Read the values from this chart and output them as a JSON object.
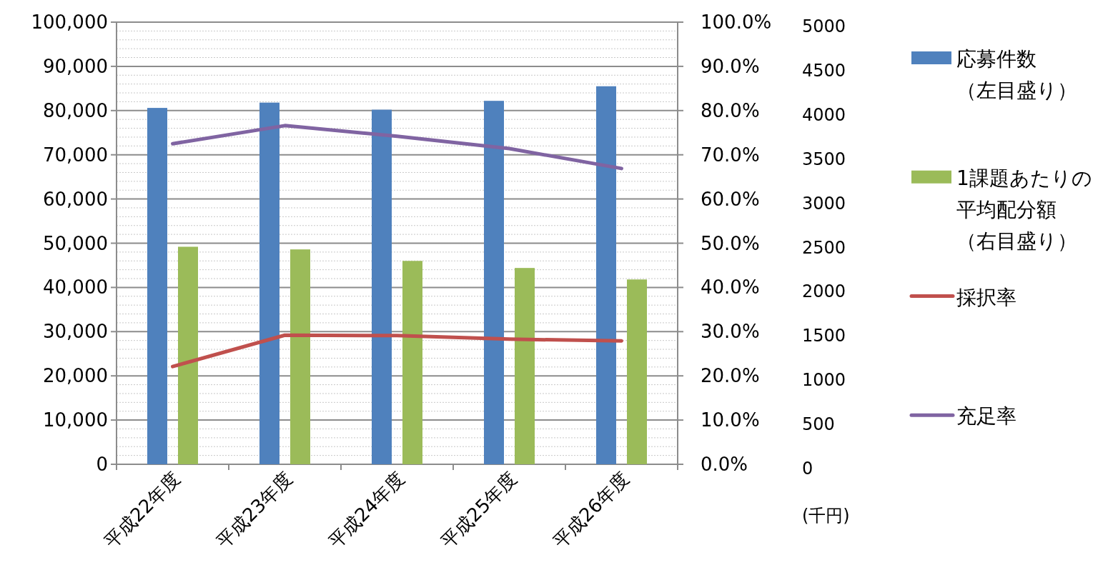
{
  "chart_data": {
    "type": "bar",
    "categories": [
      "平成22年度",
      "平成23年度",
      "平成24年度",
      "平成25年度",
      "平成26年度"
    ],
    "series": [
      {
        "name": "応募件数（左目盛り）",
        "axis": "y",
        "color": "#4f81bd",
        "values": [
          80600,
          81800,
          80200,
          82200,
          85500
        ]
      },
      {
        "name": "1課題あたりの平均配分額（右目盛り）",
        "axis": "y3",
        "color": "#9bbb59",
        "values": [
          2460,
          2430,
          2300,
          2220,
          2090
        ]
      },
      {
        "name": "採択率",
        "type": "line",
        "axis": "y2",
        "color": "#c0504d",
        "values": [
          22.1,
          29.2,
          29.1,
          28.3,
          27.9
        ]
      },
      {
        "name": "充足率",
        "type": "line",
        "axis": "y2",
        "color": "#8064a2",
        "values": [
          72.5,
          76.6,
          74.2,
          71.4,
          66.9
        ]
      }
    ],
    "ylim": [
      0,
      100000
    ],
    "yticks": [
      {
        "value": 0,
        "label": "0"
      },
      {
        "value": 2000,
        "label": null
      },
      {
        "value": 4000,
        "label": null
      },
      {
        "value": 6000,
        "label": null
      },
      {
        "value": 8000,
        "label": null
      },
      {
        "value": 10000,
        "label": "10,000"
      },
      {
        "value": 12000,
        "label": null
      },
      {
        "value": 14000,
        "label": null
      },
      {
        "value": 16000,
        "label": null
      },
      {
        "value": 18000,
        "label": null
      },
      {
        "value": 20000,
        "label": "20,000"
      },
      {
        "value": 22000,
        "label": null
      },
      {
        "value": 24000,
        "label": null
      },
      {
        "value": 26000,
        "label": null
      },
      {
        "value": 28000,
        "label": null
      },
      {
        "value": 30000,
        "label": "30,000"
      },
      {
        "value": 32000,
        "label": null
      },
      {
        "value": 34000,
        "label": null
      },
      {
        "value": 36000,
        "label": null
      },
      {
        "value": 38000,
        "label": null
      },
      {
        "value": 40000,
        "label": "40,000"
      },
      {
        "value": 42000,
        "label": null
      },
      {
        "value": 44000,
        "label": null
      },
      {
        "value": 46000,
        "label": null
      },
      {
        "value": 48000,
        "label": null
      },
      {
        "value": 50000,
        "label": "50,000"
      },
      {
        "value": 52000,
        "label": null
      },
      {
        "value": 54000,
        "label": null
      },
      {
        "value": 56000,
        "label": null
      },
      {
        "value": 58000,
        "label": null
      },
      {
        "value": 60000,
        "label": "60,000"
      },
      {
        "value": 62000,
        "label": null
      },
      {
        "value": 64000,
        "label": null
      },
      {
        "value": 66000,
        "label": null
      },
      {
        "value": 68000,
        "label": null
      },
      {
        "value": 70000,
        "label": "70,000"
      },
      {
        "value": 72000,
        "label": null
      },
      {
        "value": 74000,
        "label": null
      },
      {
        "value": 76000,
        "label": null
      },
      {
        "value": 78000,
        "label": null
      },
      {
        "value": 80000,
        "label": "80,000"
      },
      {
        "value": 82000,
        "label": null
      },
      {
        "value": 84000,
        "label": null
      },
      {
        "value": 86000,
        "label": null
      },
      {
        "value": 88000,
        "label": null
      },
      {
        "value": 90000,
        "label": "90,000"
      },
      {
        "value": 92000,
        "label": null
      },
      {
        "value": 94000,
        "label": null
      },
      {
        "value": 96000,
        "label": null
      },
      {
        "value": 98000,
        "label": null
      },
      {
        "value": 100000,
        "label": "100,000"
      }
    ],
    "y2lim": [
      0,
      100
    ],
    "y2ticks": [
      {
        "value": 0,
        "label": "0.0%"
      },
      {
        "value": 10,
        "label": "10.0%"
      },
      {
        "value": 20,
        "label": "20.0%"
      },
      {
        "value": 30,
        "label": "30.0%"
      },
      {
        "value": 40,
        "label": "40.0%"
      },
      {
        "value": 50,
        "label": "50.0%"
      },
      {
        "value": 60,
        "label": "60.0%"
      },
      {
        "value": 70,
        "label": "70.0%"
      },
      {
        "value": 80,
        "label": "80.0%"
      },
      {
        "value": 90,
        "label": "90.0%"
      },
      {
        "value": 100,
        "label": "100.0%"
      }
    ],
    "y3lim": [
      0,
      5000
    ],
    "y3ticks": [
      0,
      500,
      1000,
      1500,
      2000,
      2500,
      3000,
      3500,
      4000,
      4500,
      5000
    ],
    "y3label": "(千円)",
    "grid": "y",
    "legend": "right"
  }
}
